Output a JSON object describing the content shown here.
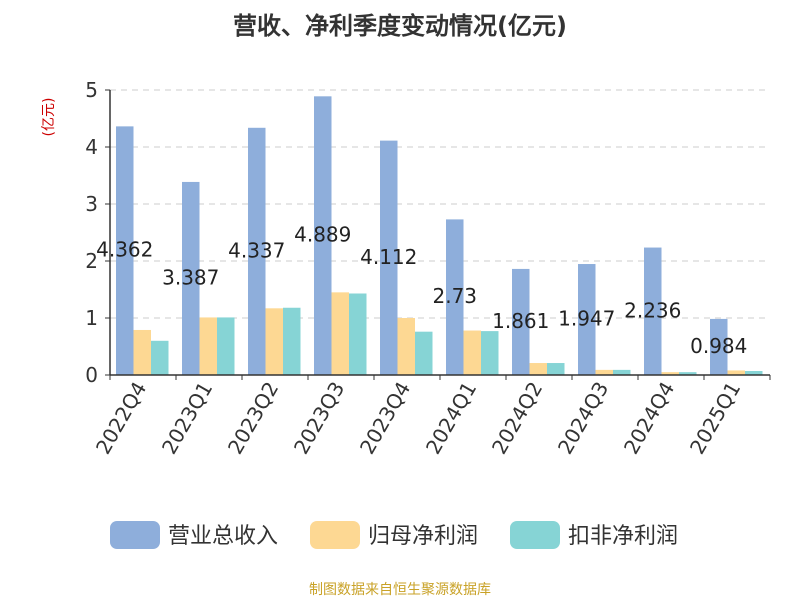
{
  "chart_data": {
    "type": "bar",
    "title": "营收、净利季度变动情况(亿元)",
    "unit_label": "(亿元)",
    "categories": [
      "2022Q4",
      "2023Q1",
      "2023Q2",
      "2023Q3",
      "2023Q4",
      "2024Q1",
      "2024Q2",
      "2024Q3",
      "2024Q4",
      "2025Q1"
    ],
    "series": [
      {
        "name": "营业总收入",
        "color": "#8eaedb",
        "values": [
          4.362,
          3.387,
          4.337,
          4.889,
          4.112,
          2.73,
          1.861,
          1.947,
          2.236,
          0.984
        ],
        "labels": [
          "4.362",
          "3.387",
          "4.337",
          "4.889",
          "4.112",
          "2.73",
          "1.861",
          "1.947",
          "2.236",
          "0.984"
        ]
      },
      {
        "name": "归母净利润",
        "color": "#fdd893",
        "values": [
          0.79,
          1.01,
          1.17,
          1.45,
          1.0,
          0.78,
          0.21,
          0.09,
          0.05,
          0.08
        ]
      },
      {
        "name": "扣非净利润",
        "color": "#86d4d5",
        "values": [
          0.6,
          1.01,
          1.18,
          1.43,
          0.76,
          0.77,
          0.21,
          0.09,
          0.05,
          0.07
        ]
      }
    ],
    "yticks": [
      "0",
      "1",
      "2",
      "3",
      "4",
      "5"
    ],
    "ylim": [
      0,
      5
    ],
    "grid": true,
    "legend_position": "bottom",
    "source": "制图数据来自恒生聚源数据库",
    "colors": {
      "axis": "#333333",
      "grid": "#cccccc",
      "unit": "#cc0000",
      "source": "#c9a227"
    }
  }
}
